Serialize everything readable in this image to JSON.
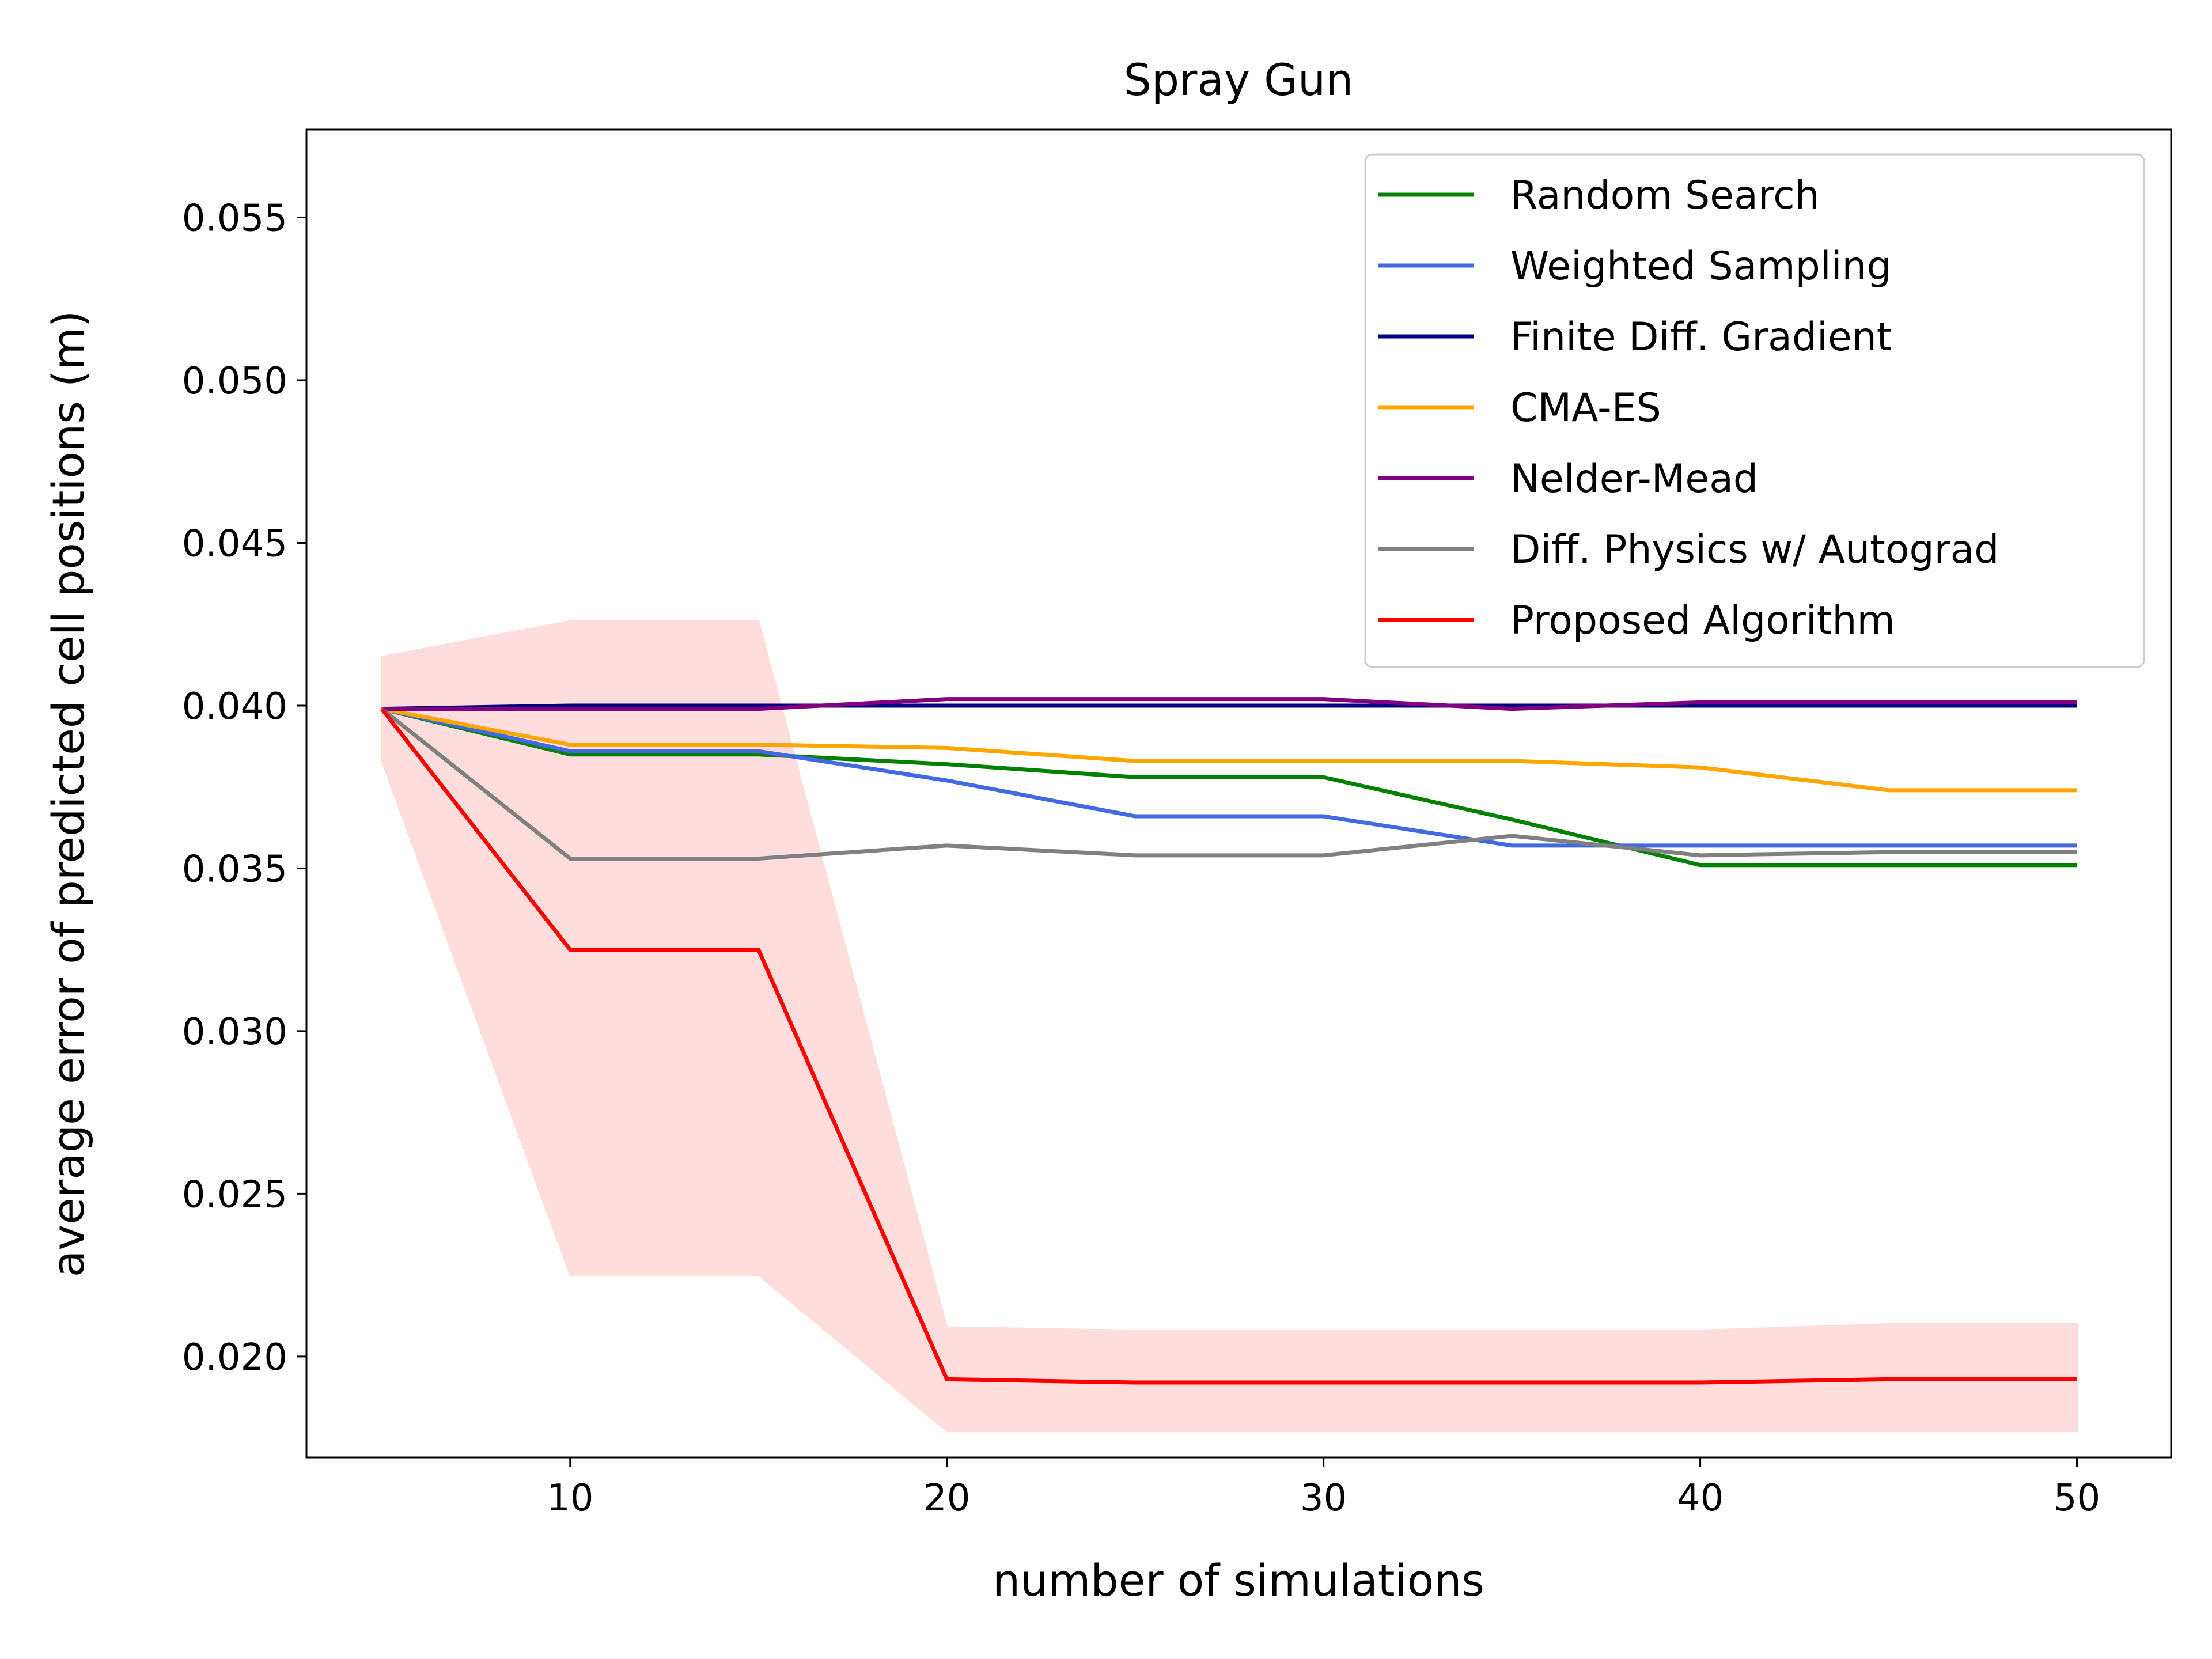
{
  "chart_data": {
    "type": "line",
    "title": "Spray Gun",
    "xlabel": "number of simulations",
    "ylabel": "average error of predicted cell positions (m)",
    "xlim": [
      3,
      52.5
    ],
    "ylim": [
      0.0169,
      0.0577
    ],
    "xticks": [
      10,
      20,
      30,
      40,
      50
    ],
    "xtick_labels": [
      "10",
      "20",
      "30",
      "40",
      "50"
    ],
    "yticks": [
      0.02,
      0.025,
      0.03,
      0.035,
      0.04,
      0.045,
      0.05,
      0.055
    ],
    "ytick_labels": [
      "0.020",
      "0.025",
      "0.030",
      "0.035",
      "0.040",
      "0.045",
      "0.050",
      "0.055"
    ],
    "grid": false,
    "legend_position": "top-right",
    "x": [
      5,
      10,
      15,
      20,
      25,
      30,
      35,
      40,
      45,
      50
    ],
    "series": [
      {
        "name": "Random Search",
        "color": "#008000",
        "values": [
          0.0399,
          0.0385,
          0.0385,
          0.0382,
          0.0378,
          0.0378,
          0.0365,
          0.0351,
          0.0351,
          0.0351
        ]
      },
      {
        "name": "Weighted Sampling",
        "color": "#4169e1",
        "values": [
          0.0399,
          0.0386,
          0.0386,
          0.0377,
          0.0366,
          0.0366,
          0.0357,
          0.0357,
          0.0357,
          0.0357
        ]
      },
      {
        "name": "Finite Diff. Gradient",
        "color": "#000080",
        "values": [
          0.0399,
          0.04,
          0.04,
          0.04,
          0.04,
          0.04,
          0.04,
          0.04,
          0.04,
          0.04
        ]
      },
      {
        "name": "CMA-ES",
        "color": "#ffa500",
        "values": [
          0.0399,
          0.0388,
          0.0388,
          0.0387,
          0.0383,
          0.0383,
          0.0383,
          0.0381,
          0.0374,
          0.0374
        ]
      },
      {
        "name": "Nelder-Mead",
        "color": "#800080",
        "values": [
          0.0399,
          0.0399,
          0.0399,
          0.0402,
          0.0402,
          0.0402,
          0.0399,
          0.0401,
          0.0401,
          0.0401
        ]
      },
      {
        "name": "Diff. Physics w/ Autograd",
        "color": "#808080",
        "values": [
          0.0399,
          0.0353,
          0.0353,
          0.0357,
          0.0354,
          0.0354,
          0.036,
          0.0354,
          0.0355,
          0.0355
        ]
      },
      {
        "name": "Proposed Algorithm",
        "color": "#ff0000",
        "values": [
          0.0399,
          0.0325,
          0.0325,
          0.0193,
          0.0192,
          0.0192,
          0.0192,
          0.0192,
          0.0193,
          0.0193
        ],
        "band_lower": [
          0.0383,
          0.0225,
          0.0225,
          0.0177,
          0.0177,
          0.0177,
          0.0177,
          0.0177,
          0.0177,
          0.0177
        ],
        "band_upper": [
          0.0415,
          0.0426,
          0.0426,
          0.0209,
          0.0208,
          0.0208,
          0.0208,
          0.0208,
          0.021,
          0.021
        ],
        "band_color": "#ffdddd"
      }
    ]
  }
}
